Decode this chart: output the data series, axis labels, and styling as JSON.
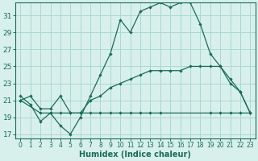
{
  "xlabel": "Humidex (Indice chaleur)",
  "bg_color": "#d8f0ec",
  "grid_color": "#aad8d0",
  "line_color": "#1a6b5a",
  "xlim": [
    -0.5,
    23.5
  ],
  "ylim": [
    16.5,
    32.5
  ],
  "xticks": [
    0,
    1,
    2,
    3,
    4,
    5,
    6,
    7,
    8,
    9,
    10,
    11,
    12,
    13,
    14,
    15,
    16,
    17,
    18,
    19,
    20,
    21,
    22,
    23
  ],
  "yticks": [
    17,
    19,
    21,
    23,
    25,
    27,
    29,
    31
  ],
  "line1_x": [
    0,
    1,
    2,
    3,
    4,
    5,
    6,
    7,
    8,
    9,
    10,
    11,
    12,
    13,
    14,
    15,
    16,
    17,
    18,
    19,
    20,
    21,
    22,
    23
  ],
  "line1_y": [
    21.5,
    20.5,
    18.5,
    19.5,
    18.0,
    17.0,
    19.0,
    21.5,
    24.0,
    26.5,
    30.5,
    29.0,
    31.5,
    32.0,
    32.5,
    32.0,
    32.5,
    32.5,
    30.0,
    26.5,
    25.0,
    23.0,
    22.0,
    19.5
  ],
  "line2_x": [
    0,
    2,
    3,
    4,
    5,
    6,
    7,
    8,
    9,
    10,
    11,
    12,
    13,
    14,
    19,
    20,
    21,
    22,
    23
  ],
  "line2_y": [
    21.0,
    19.5,
    19.5,
    19.5,
    19.5,
    19.5,
    19.5,
    19.5,
    19.5,
    19.5,
    19.5,
    19.5,
    19.5,
    19.5,
    19.5,
    19.5,
    19.5,
    19.5,
    19.5
  ],
  "line3_x": [
    0,
    1,
    2,
    3,
    4,
    5,
    6,
    7,
    8,
    9,
    10,
    11,
    12,
    13,
    14,
    15,
    16,
    17,
    18,
    19,
    20,
    21,
    22,
    23
  ],
  "line3_y": [
    21.0,
    21.5,
    20.0,
    20.0,
    21.5,
    19.5,
    19.5,
    21.0,
    21.5,
    22.5,
    23.0,
    23.5,
    24.0,
    24.5,
    24.5,
    24.5,
    24.5,
    25.0,
    25.0,
    25.0,
    25.0,
    23.5,
    22.0,
    19.5
  ]
}
